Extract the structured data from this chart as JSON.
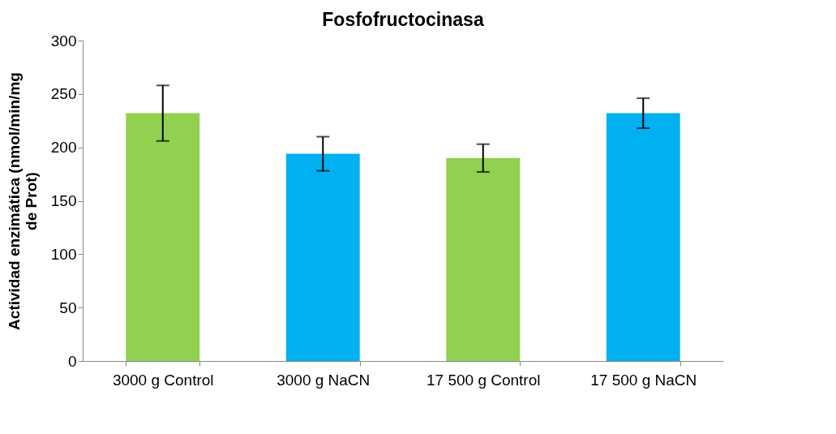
{
  "chart_data": {
    "type": "bar",
    "title": "Fosfofructocinasa",
    "ylabel": "Actividad enzimática (nmol/min/mg de Prot)",
    "categories": [
      "3000 g Control",
      "3000 g NaCN",
      "17 500 g Control",
      "17 500 g NaCN"
    ],
    "values": [
      232,
      194,
      190,
      232
    ],
    "errors": [
      26,
      16,
      13,
      14
    ],
    "colors": [
      "#92d050",
      "#00b0f0",
      "#92d050",
      "#00b0f0"
    ],
    "ylim": [
      0,
      300
    ],
    "yticks": [
      0,
      50,
      100,
      150,
      200,
      250,
      300
    ],
    "grid": false
  }
}
